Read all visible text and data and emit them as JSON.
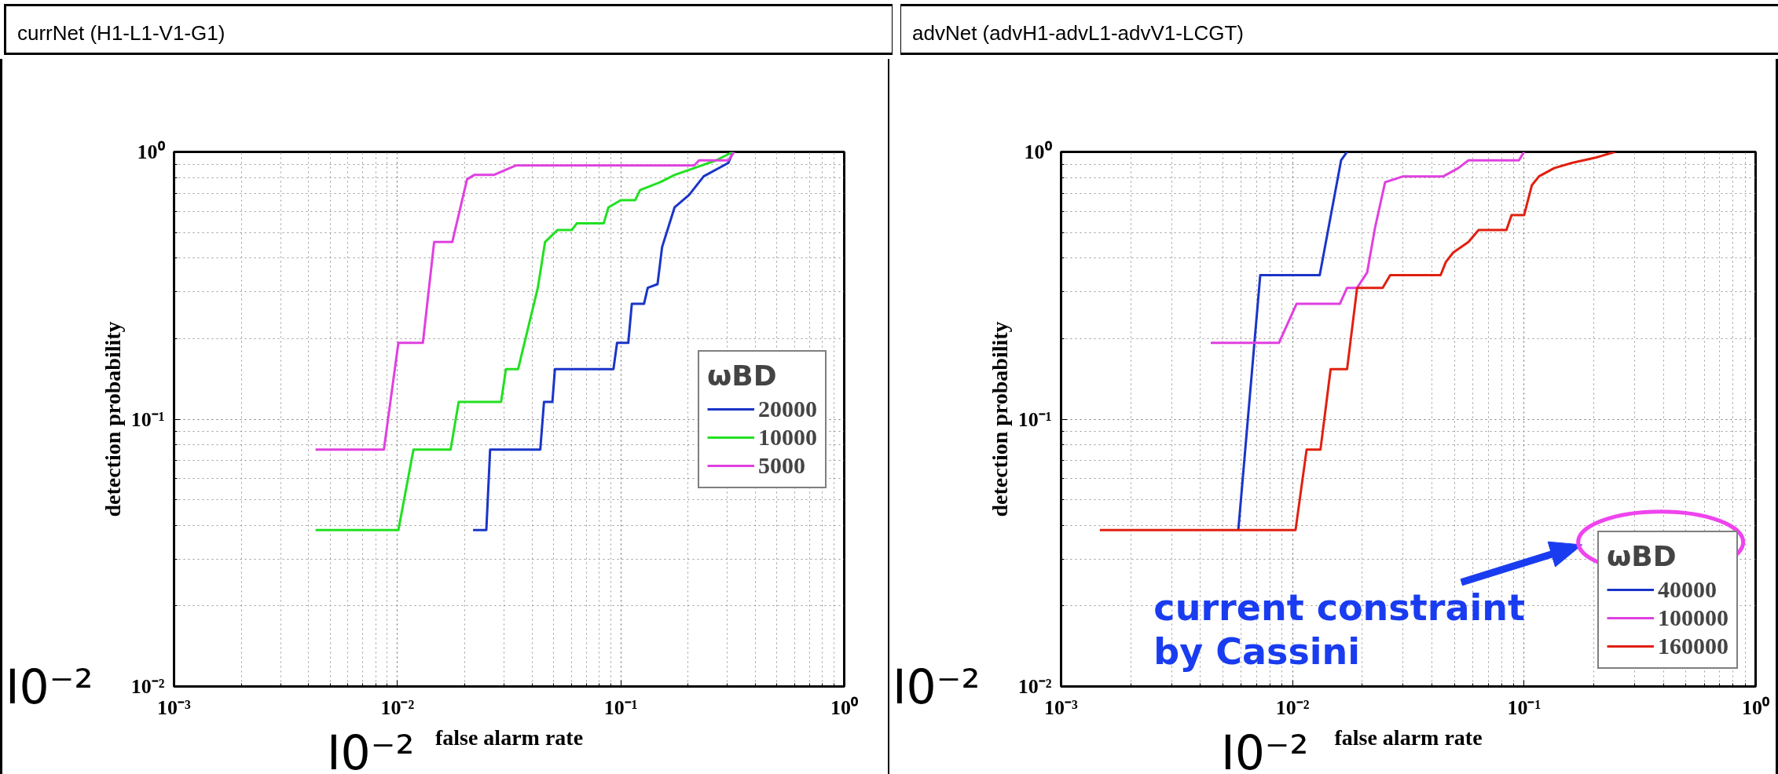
{
  "chart_data": [
    {
      "type": "line",
      "title": "currNet (H1-L1-V1-G1)",
      "xlabel": "false alarm rate",
      "ylabel": "detection probability",
      "legend_title": "ωBD",
      "log": "xy",
      "grid": true,
      "legend": "right",
      "xlim": [
        0.001,
        1
      ],
      "ylim": [
        0.01,
        1
      ],
      "xticks": [
        {
          "value": 0.001,
          "label": "10⁻³"
        },
        {
          "value": 0.01,
          "label": "10⁻²"
        },
        {
          "value": 0.1,
          "label": "10⁻¹"
        },
        {
          "value": 1,
          "label": "10⁰"
        }
      ],
      "yticks": [
        {
          "value": 0.01,
          "label": "10⁻²"
        },
        {
          "value": 0.1,
          "label": "10⁻¹"
        },
        {
          "value": 1,
          "label": "10⁰"
        }
      ],
      "annotations": [
        "I0⁻²",
        "I0⁻²"
      ],
      "series": [
        {
          "name": "20000",
          "color": "#1a35c8",
          "x": [
            0.0218,
            0.025,
            0.026,
            0.0436,
            0.0453,
            0.0494,
            0.0507,
            0.0927,
            0.0962,
            0.108,
            0.112,
            0.127,
            0.132,
            0.146,
            0.153,
            0.174,
            0.202,
            0.235,
            0.303,
            0.318
          ],
          "values": [
            0.0385,
            0.0385,
            0.077,
            0.077,
            0.116,
            0.116,
            0.154,
            0.154,
            0.193,
            0.193,
            0.27,
            0.27,
            0.31,
            0.32,
            0.44,
            0.62,
            0.69,
            0.81,
            0.91,
            1.0
          ]
        },
        {
          "name": "10000",
          "color": "#22e022",
          "x": [
            0.0043,
            0.0101,
            0.0118,
            0.0173,
            0.0188,
            0.0291,
            0.0306,
            0.0347,
            0.0425,
            0.0458,
            0.052,
            0.0603,
            0.0635,
            0.0838,
            0.088,
            0.1,
            0.116,
            0.122,
            0.15,
            0.174,
            0.213,
            0.267,
            0.318
          ],
          "values": [
            0.0385,
            0.0385,
            0.077,
            0.077,
            0.116,
            0.116,
            0.154,
            0.154,
            0.31,
            0.46,
            0.51,
            0.51,
            0.54,
            0.54,
            0.62,
            0.66,
            0.66,
            0.72,
            0.77,
            0.82,
            0.87,
            0.93,
            1.0
          ]
        },
        {
          "name": "5000",
          "color": "#e040e0",
          "x": [
            0.0043,
            0.0087,
            0.0101,
            0.013,
            0.0146,
            0.0176,
            0.0205,
            0.0221,
            0.027,
            0.034,
            0.213,
            0.224,
            0.303,
            0.322
          ],
          "values": [
            0.077,
            0.077,
            0.193,
            0.193,
            0.46,
            0.46,
            0.79,
            0.82,
            0.82,
            0.89,
            0.89,
            0.93,
            0.93,
            1.0
          ]
        }
      ]
    },
    {
      "type": "line",
      "title": "advNet  (advH1-advL1-advV1-LCGT)",
      "xlabel": "false alarm rate",
      "ylabel": "detection probability",
      "legend_title": "ωBD",
      "log": "xy",
      "grid": true,
      "legend": "bottom right",
      "xlim": [
        0.001,
        1
      ],
      "ylim": [
        0.01,
        1
      ],
      "xticks": [
        {
          "value": 0.001,
          "label": "10⁻³"
        },
        {
          "value": 0.01,
          "label": "10⁻²"
        },
        {
          "value": 0.1,
          "label": "10⁻¹"
        },
        {
          "value": 1,
          "label": "10⁰"
        }
      ],
      "yticks": [
        {
          "value": 0.01,
          "label": "10⁻²"
        },
        {
          "value": 0.1,
          "label": "10⁻¹"
        },
        {
          "value": 1,
          "label": "10⁰"
        }
      ],
      "annotations": [
        "current constraint\nby Cassini",
        "I0⁻²",
        "I0⁻²"
      ],
      "series": [
        {
          "name": "40000",
          "color": "#1a35c8",
          "x": [
            0.00583,
            0.00725,
            0.0131,
            0.0162,
            0.0172
          ],
          "values": [
            0.0385,
            0.346,
            0.346,
            0.93,
            1.0
          ]
        },
        {
          "name": "100000",
          "color": "#e040e0",
          "x": [
            0.00443,
            0.00873,
            0.0104,
            0.016,
            0.0172,
            0.019,
            0.021,
            0.0227,
            0.0251,
            0.03,
            0.0448,
            0.052,
            0.0575,
            0.095,
            0.1
          ],
          "values": [
            0.193,
            0.193,
            0.27,
            0.27,
            0.31,
            0.31,
            0.354,
            0.52,
            0.77,
            0.81,
            0.81,
            0.87,
            0.93,
            0.93,
            1.0
          ]
        },
        {
          "name": "160000",
          "color": "#e02010",
          "x": [
            0.00147,
            0.0103,
            0.0115,
            0.0132,
            0.0146,
            0.0172,
            0.019,
            0.0245,
            0.0264,
            0.0436,
            0.0459,
            0.0494,
            0.0575,
            0.0636,
            0.0839,
            0.0883,
            0.1,
            0.108,
            0.116,
            0.135,
            0.161,
            0.202,
            0.247
          ],
          "values": [
            0.0385,
            0.0385,
            0.077,
            0.077,
            0.154,
            0.154,
            0.31,
            0.31,
            0.346,
            0.346,
            0.387,
            0.42,
            0.46,
            0.51,
            0.51,
            0.58,
            0.58,
            0.75,
            0.81,
            0.87,
            0.91,
            0.95,
            1.0
          ]
        }
      ]
    }
  ]
}
